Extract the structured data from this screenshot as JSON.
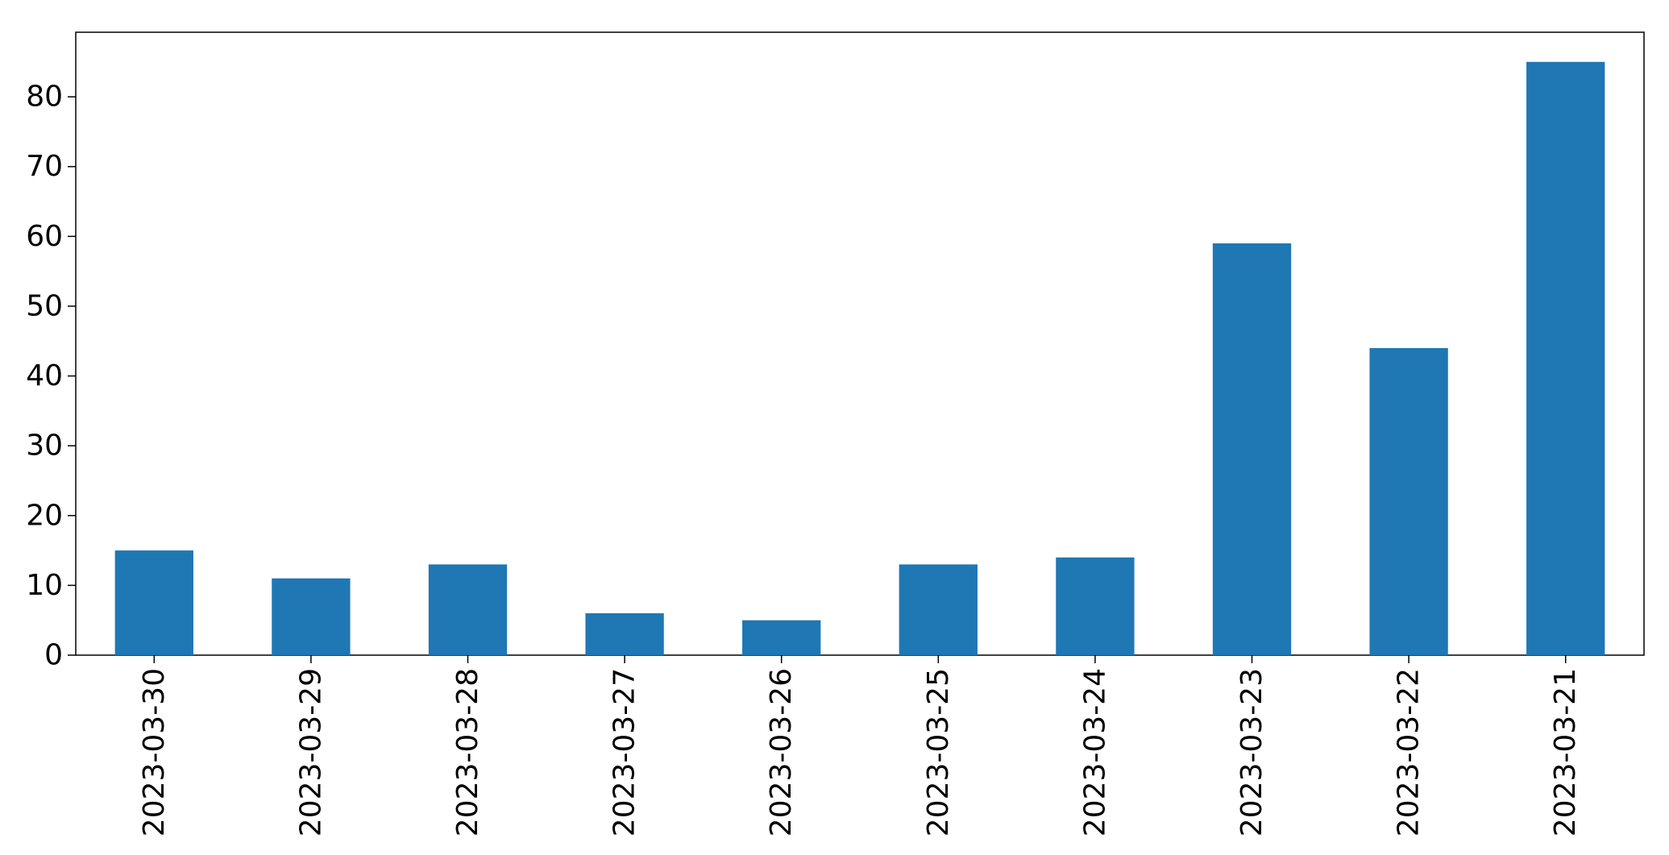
{
  "chart_data": {
    "type": "bar",
    "categories": [
      "2023-03-30",
      "2023-03-29",
      "2023-03-28",
      "2023-03-27",
      "2023-03-26",
      "2023-03-25",
      "2023-03-24",
      "2023-03-23",
      "2023-03-22",
      "2023-03-21"
    ],
    "values": [
      15,
      11,
      13,
      6,
      5,
      13,
      14,
      59,
      44,
      85
    ],
    "title": "",
    "xlabel": "",
    "ylabel": "",
    "ylim": [
      0,
      89.25
    ],
    "yticks": [
      0,
      10,
      20,
      30,
      40,
      50,
      60,
      70,
      80
    ],
    "grid": false,
    "legend": "none",
    "bar_color": "#1f77b4"
  }
}
